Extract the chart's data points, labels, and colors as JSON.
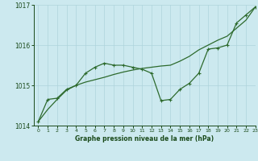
{
  "x": [
    0,
    1,
    2,
    3,
    4,
    5,
    6,
    7,
    8,
    9,
    10,
    11,
    12,
    13,
    14,
    15,
    16,
    17,
    18,
    19,
    20,
    21,
    22,
    23
  ],
  "y_jagged": [
    1014.1,
    1014.65,
    1014.68,
    1014.9,
    1015.0,
    1015.3,
    1015.45,
    1015.55,
    1015.5,
    1015.5,
    1015.45,
    1015.4,
    1015.3,
    1014.62,
    1014.65,
    1014.9,
    1015.05,
    1015.3,
    1015.9,
    1015.93,
    1016.0,
    1016.55,
    1016.75,
    1016.95
  ],
  "y_trend": [
    1014.1,
    1014.4,
    1014.65,
    1014.88,
    1015.0,
    1015.08,
    1015.14,
    1015.2,
    1015.27,
    1015.33,
    1015.38,
    1015.42,
    1015.45,
    1015.48,
    1015.5,
    1015.6,
    1015.72,
    1015.88,
    1016.0,
    1016.12,
    1016.22,
    1016.42,
    1016.62,
    1016.95
  ],
  "ylim": [
    1014.0,
    1017.0
  ],
  "xlim": [
    -0.5,
    23
  ],
  "yticks": [
    1014,
    1015,
    1016,
    1017
  ],
  "xticks": [
    0,
    1,
    2,
    3,
    4,
    5,
    6,
    7,
    8,
    9,
    10,
    11,
    12,
    13,
    14,
    15,
    16,
    17,
    18,
    19,
    20,
    21,
    22,
    23
  ],
  "line_color": "#2d6a2d",
  "bg_color": "#cce9ef",
  "grid_color": "#aed4dc",
  "xlabel": "Graphe pression niveau de la mer (hPa)",
  "xlabel_color": "#1a4a1a",
  "tick_color": "#1a4a1a"
}
